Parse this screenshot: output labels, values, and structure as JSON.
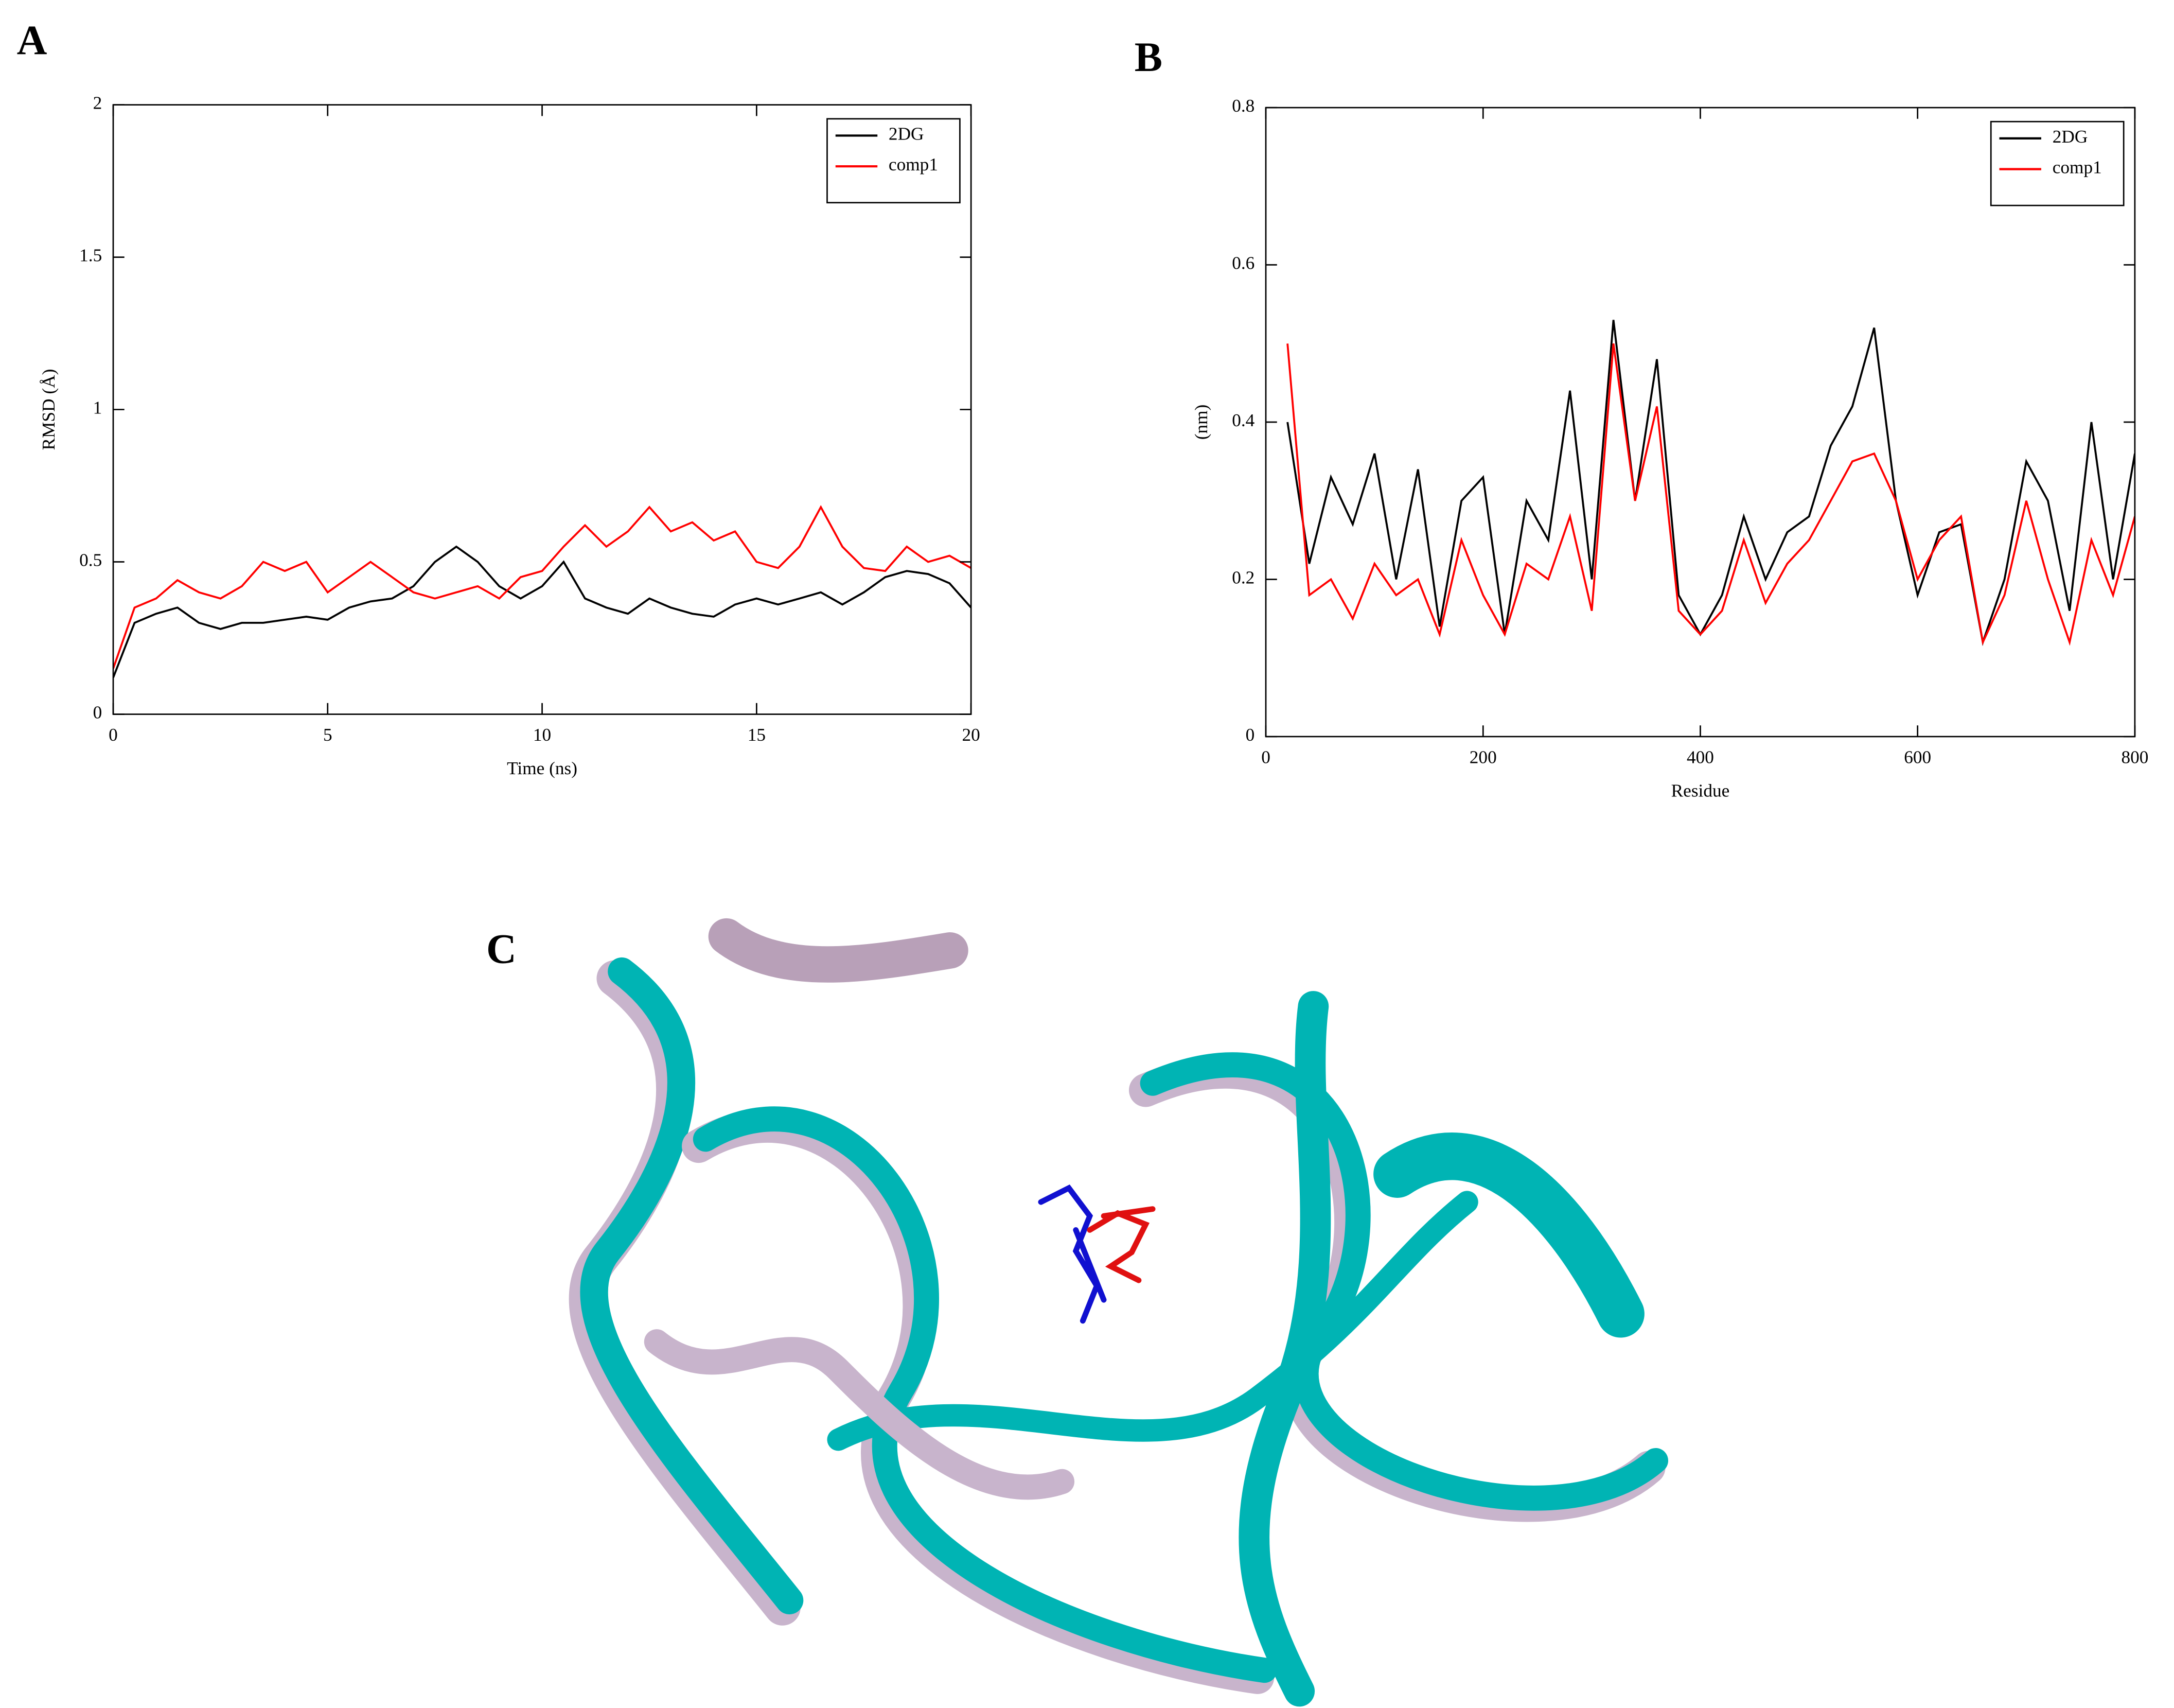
{
  "chart_data": [
    {
      "type": "line",
      "panel": "A",
      "xlabel": "Time (ns)",
      "ylabel": "RMSD (Å)",
      "x": [
        0,
        0.5,
        1,
        1.5,
        2,
        2.5,
        3,
        3.5,
        4,
        4.5,
        5,
        5.5,
        6,
        6.5,
        7,
        7.5,
        8,
        8.5,
        9,
        9.5,
        10,
        10.5,
        11,
        11.5,
        12,
        12.5,
        13,
        13.5,
        14,
        14.5,
        15,
        15.5,
        16,
        16.5,
        17,
        17.5,
        18,
        18.5,
        19,
        19.5,
        20
      ],
      "series": [
        {
          "name": "2DG",
          "color": "#000000",
          "values": [
            0.12,
            0.3,
            0.33,
            0.35,
            0.3,
            0.28,
            0.3,
            0.3,
            0.31,
            0.32,
            0.31,
            0.35,
            0.37,
            0.38,
            0.42,
            0.5,
            0.55,
            0.5,
            0.42,
            0.38,
            0.42,
            0.5,
            0.38,
            0.35,
            0.33,
            0.38,
            0.35,
            0.33,
            0.32,
            0.36,
            0.38,
            0.36,
            0.38,
            0.4,
            0.36,
            0.4,
            0.45,
            0.47,
            0.46,
            0.43,
            0.35
          ]
        },
        {
          "name": "comp1",
          "color": "#ff0000",
          "values": [
            0.15,
            0.35,
            0.38,
            0.44,
            0.4,
            0.38,
            0.42,
            0.5,
            0.47,
            0.5,
            0.4,
            0.45,
            0.5,
            0.45,
            0.4,
            0.38,
            0.4,
            0.42,
            0.38,
            0.45,
            0.47,
            0.55,
            0.62,
            0.55,
            0.6,
            0.68,
            0.6,
            0.63,
            0.57,
            0.6,
            0.5,
            0.48,
            0.55,
            0.68,
            0.55,
            0.48,
            0.47,
            0.55,
            0.5,
            0.52,
            0.48
          ]
        }
      ],
      "xlim": [
        0,
        20
      ],
      "xticks": [
        0,
        5,
        10,
        15,
        20
      ],
      "ylim": [
        0,
        2
      ],
      "yticks": [
        0,
        0.5,
        1,
        1.5,
        2
      ],
      "legend": "upper right"
    },
    {
      "type": "line",
      "panel": "B",
      "xlabel": "Residue",
      "ylabel": "(nm)",
      "x": [
        20,
        40,
        60,
        80,
        100,
        120,
        140,
        160,
        180,
        200,
        220,
        240,
        260,
        280,
        300,
        320,
        340,
        360,
        380,
        400,
        420,
        440,
        460,
        480,
        500,
        520,
        540,
        560,
        580,
        600,
        620,
        640,
        660,
        680,
        700,
        720,
        740,
        760,
        780,
        800
      ],
      "series": [
        {
          "name": "2DG",
          "color": "#000000",
          "values": [
            0.4,
            0.22,
            0.33,
            0.27,
            0.36,
            0.2,
            0.34,
            0.14,
            0.3,
            0.33,
            0.13,
            0.3,
            0.25,
            0.44,
            0.2,
            0.53,
            0.3,
            0.48,
            0.18,
            0.13,
            0.18,
            0.28,
            0.2,
            0.26,
            0.28,
            0.37,
            0.42,
            0.52,
            0.3,
            0.18,
            0.26,
            0.27,
            0.12,
            0.2,
            0.35,
            0.3,
            0.16,
            0.4,
            0.2,
            0.36
          ]
        },
        {
          "name": "comp1",
          "color": "#ff0000",
          "values": [
            0.5,
            0.18,
            0.2,
            0.15,
            0.22,
            0.18,
            0.2,
            0.13,
            0.25,
            0.18,
            0.13,
            0.22,
            0.2,
            0.28,
            0.16,
            0.5,
            0.3,
            0.42,
            0.16,
            0.13,
            0.16,
            0.25,
            0.17,
            0.22,
            0.25,
            0.3,
            0.35,
            0.36,
            0.3,
            0.2,
            0.25,
            0.28,
            0.12,
            0.18,
            0.3,
            0.2,
            0.12,
            0.25,
            0.18,
            0.28
          ]
        }
      ],
      "xlim": [
        0,
        800
      ],
      "xticks": [
        0,
        200,
        400,
        600,
        800
      ],
      "ylim": [
        0,
        0.8
      ],
      "yticks": [
        0,
        0.2,
        0.4,
        0.6,
        0.8
      ],
      "legend": "upper right"
    }
  ],
  "panel_c": {
    "label": "C"
  }
}
